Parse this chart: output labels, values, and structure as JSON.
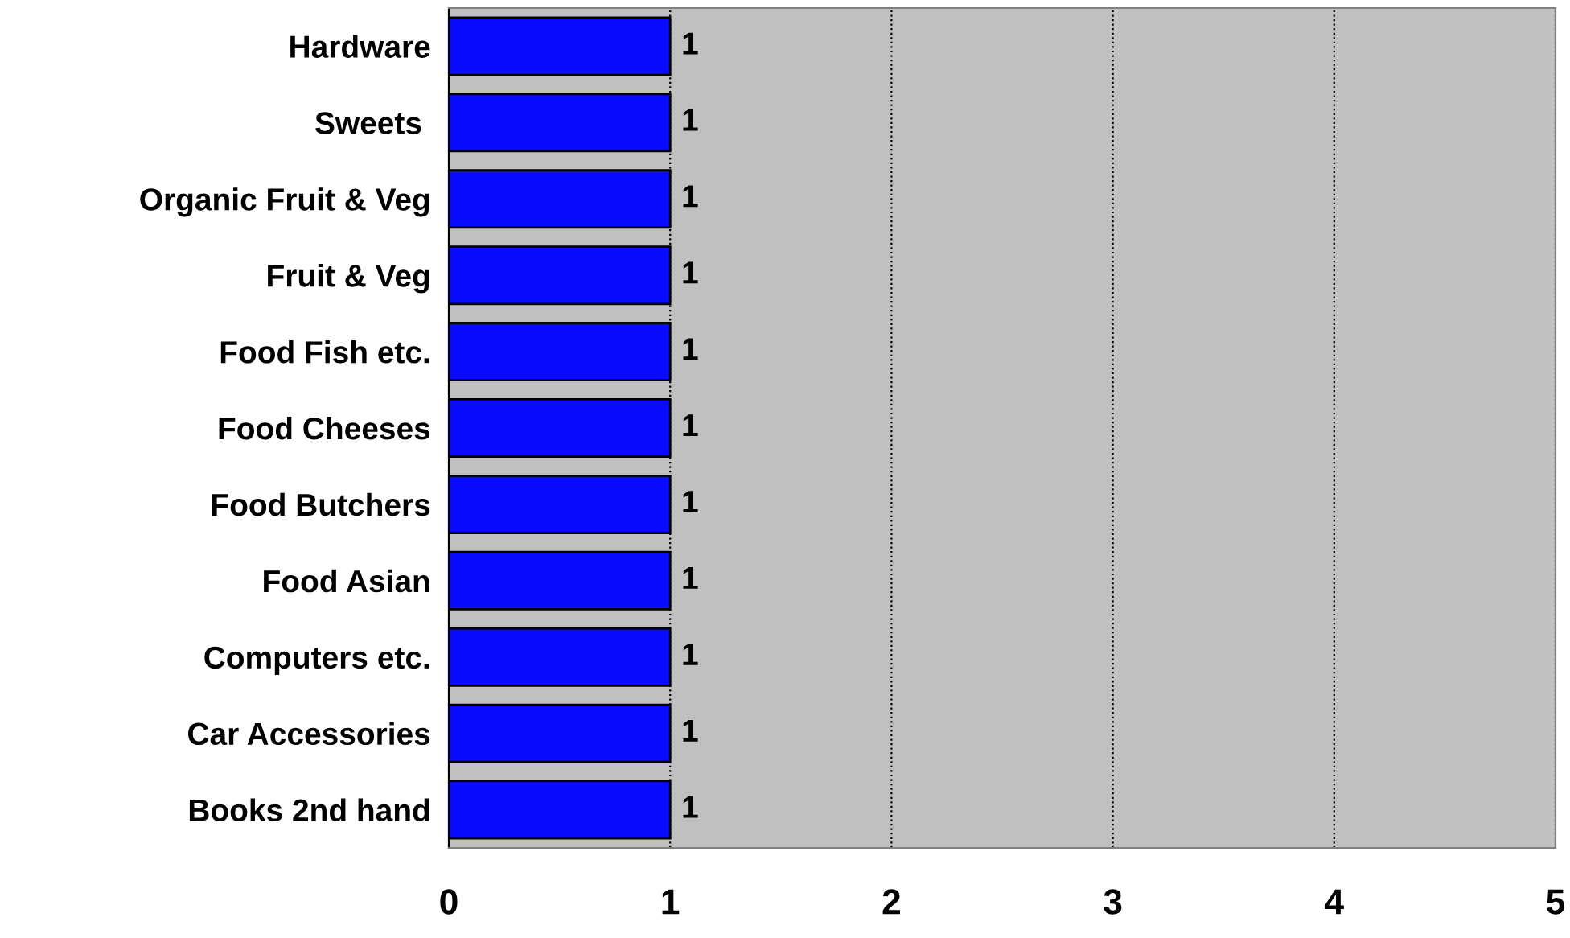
{
  "chart_data": {
    "type": "bar",
    "orientation": "horizontal",
    "categories": [
      "Hardware",
      "Sweets ",
      "Organic Fruit & Veg",
      "Fruit & Veg",
      "Food Fish etc.",
      "Food Cheeses",
      "Food Butchers",
      "Food Asian",
      "Computers etc.",
      "Car Accessories",
      "Books 2nd hand"
    ],
    "values": [
      1,
      1,
      1,
      1,
      1,
      1,
      1,
      1,
      1,
      1,
      1
    ],
    "color": "#0a0aff",
    "xlim": [
      0,
      5
    ],
    "xticks": [
      0,
      1,
      2,
      3,
      4,
      5
    ],
    "grid": "x",
    "data_labels": true
  }
}
